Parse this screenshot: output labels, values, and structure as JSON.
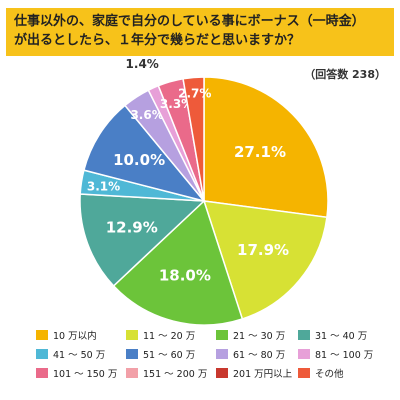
{
  "title": {
    "line1": "仕事以外の、家庭で自分のしている事にボーナス（一時金）",
    "line2": "が出るとしたら、１年分で幾らだと思いますか？"
  },
  "respondents": "（回答数 238）",
  "chart_data": {
    "type": "pie",
    "title": "仕事以外の、家庭で自分のしている事にボーナス（一時金）が出るとしたら、１年分で幾らだと思いますか？",
    "n": 238,
    "legend_position": "bottom",
    "slices": [
      {
        "label": "10 万以内",
        "value": 27.1,
        "color": "#f5b400",
        "text": "27.1%"
      },
      {
        "label": "11 ～ 20 万",
        "value": 17.9,
        "color": "#d7e134",
        "text": "17.9%"
      },
      {
        "label": "21 ～ 30 万",
        "value": 18.0,
        "color": "#6cc43a",
        "text": "18.0%"
      },
      {
        "label": "31 ～ 40 万",
        "value": 12.9,
        "color": "#4fa89a",
        "text": "12.9%"
      },
      {
        "label": "41 ～ 50 万",
        "value": 3.1,
        "color": "#4fb8d6",
        "text": "3.1%"
      },
      {
        "label": "51 ～ 60 万",
        "value": 10.0,
        "color": "#4a7fc6",
        "text": "10.0%"
      },
      {
        "label": "61 ～ 80 万",
        "value": 3.6,
        "color": "#b6a0e0",
        "text": "3.6%"
      },
      {
        "label": "81 ～ 100 万",
        "value": 1.4,
        "color": "#e7a0d8",
        "text": "1.4%"
      },
      {
        "label": "101 ～ 150 万",
        "value": 3.3,
        "color": "#ea6a8a",
        "text": "3.3%"
      },
      {
        "label": "151 ～ 200 万",
        "value": 0,
        "color": "#f2a0a8",
        "text": ""
      },
      {
        "label": "201 万円以上",
        "value": 0,
        "color": "#c8382e",
        "text": ""
      },
      {
        "label": "その他",
        "value": 2.7,
        "color": "#ee5a3a",
        "text": "2.7%"
      }
    ]
  }
}
